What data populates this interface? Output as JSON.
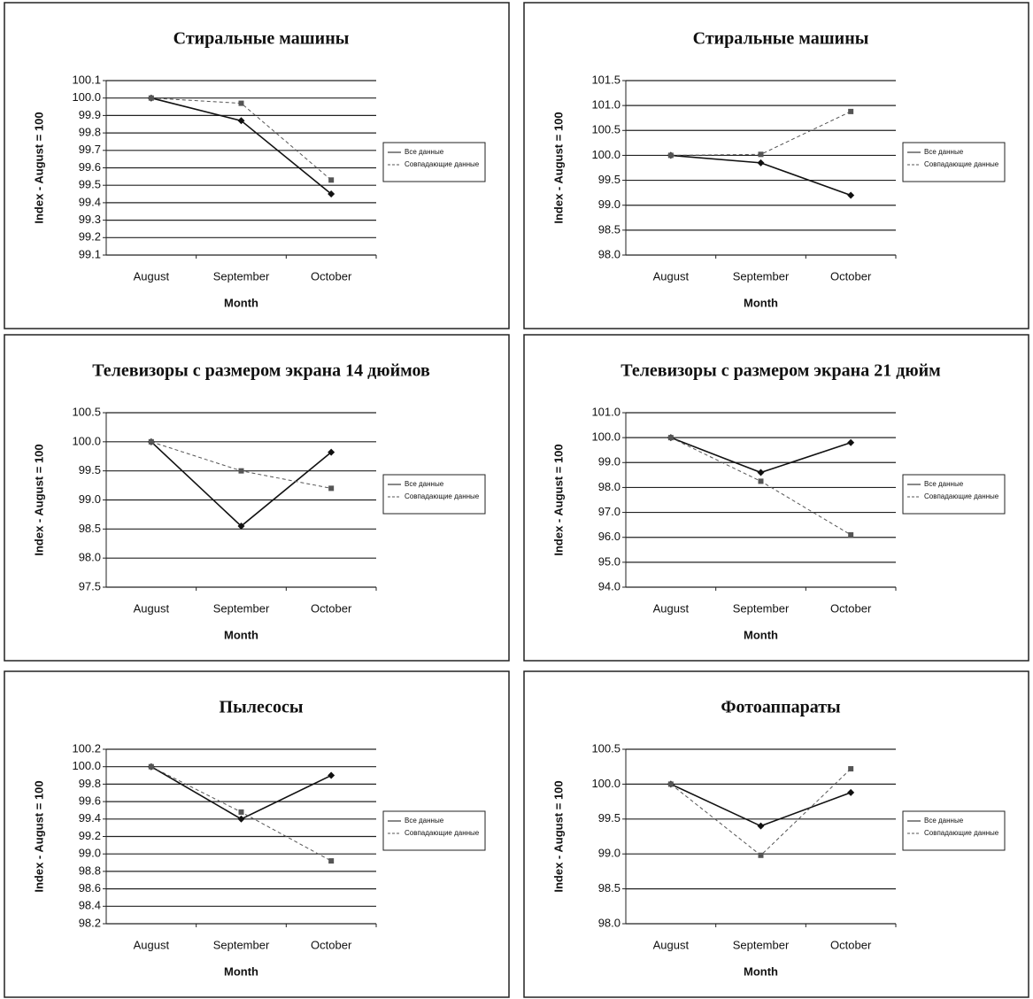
{
  "chart_data": [
    {
      "type": "line",
      "title": "Стиральные машины",
      "xlabel": "Month",
      "ylabel": "Index - August = 100",
      "categories": [
        "August",
        "September",
        "October"
      ],
      "series": [
        {
          "name": "Все данные",
          "color": "#111111",
          "style": "solid",
          "marker": "diamond",
          "values": [
            100,
            99.87,
            99.45
          ]
        },
        {
          "name": "Совпадающие данные",
          "color": "#555555",
          "style": "dashed",
          "marker": "square",
          "values": [
            100,
            99.97,
            99.53
          ]
        }
      ],
      "ylim": [
        99.1,
        100.1
      ],
      "yticks": [
        99.1,
        99.2,
        99.3,
        99.4,
        99.5,
        99.6,
        99.7,
        99.8,
        99.9,
        {
          "value": 100,
          "label": "100.0"
        },
        100.1
      ],
      "grid": true,
      "legend": "right"
    },
    {
      "type": "line",
      "title": "Стиральные машины",
      "xlabel": "Month",
      "ylabel": "Index - August = 100",
      "categories": [
        "August",
        "September",
        "October"
      ],
      "series": [
        {
          "name": "Все данные",
          "color": "#111111",
          "style": "solid",
          "marker": "diamond",
          "values": [
            100,
            99.85,
            99.2
          ]
        },
        {
          "name": "Совпадающие данные",
          "color": "#555555",
          "style": "dashed",
          "marker": "square",
          "values": [
            100,
            100.02,
            100.88
          ]
        }
      ],
      "ylim": [
        98,
        101.5
      ],
      "yticks": [
        {
          "value": 98,
          "label": "98.0"
        },
        98.5,
        {
          "value": 99,
          "label": "99.0"
        },
        99.5,
        {
          "value": 100,
          "label": "100.0"
        },
        100.5,
        {
          "value": 101,
          "label": "101.0"
        },
        101.5
      ],
      "grid": true,
      "legend": "right"
    },
    {
      "type": "line",
      "title": "Телевизоры с размером экрана 14 дюймов",
      "xlabel": "Month",
      "ylabel": "Index - August = 100",
      "categories": [
        "August",
        "September",
        "October"
      ],
      "series": [
        {
          "name": "Все данные",
          "color": "#111111",
          "style": "solid",
          "marker": "diamond",
          "values": [
            100,
            98.55,
            99.82
          ]
        },
        {
          "name": "Совпадающие данные",
          "color": "#555555",
          "style": "dashed",
          "marker": "square",
          "values": [
            100,
            99.5,
            99.2
          ]
        }
      ],
      "ylim": [
        97.5,
        100.5
      ],
      "yticks": [
        97.5,
        {
          "value": 98,
          "label": "98.0"
        },
        98.5,
        {
          "value": 99,
          "label": "99.0"
        },
        99.5,
        {
          "value": 100,
          "label": "100.0"
        },
        100.5
      ],
      "grid": true,
      "legend": "right"
    },
    {
      "type": "line",
      "title": "Телевизоры с размером экрана 21 дюйм",
      "xlabel": "Month",
      "ylabel": "Index - August = 100",
      "categories": [
        "August",
        "September",
        "October"
      ],
      "series": [
        {
          "name": "Все данные",
          "color": "#111111",
          "style": "solid",
          "marker": "diamond",
          "values": [
            100,
            98.6,
            99.8
          ]
        },
        {
          "name": "Совпадающие данные",
          "color": "#555555",
          "style": "dashed",
          "marker": "square",
          "values": [
            100,
            98.25,
            96.1
          ]
        }
      ],
      "ylim": [
        94,
        101
      ],
      "yticks": [
        {
          "value": 94,
          "label": "94.0"
        },
        {
          "value": 95,
          "label": "95.0"
        },
        {
          "value": 96,
          "label": "96.0"
        },
        {
          "value": 97,
          "label": "97.0"
        },
        {
          "value": 98,
          "label": "98.0"
        },
        {
          "value": 99,
          "label": "99.0"
        },
        {
          "value": 100,
          "label": "100.0"
        },
        {
          "value": 101,
          "label": "101.0"
        }
      ],
      "grid": true,
      "legend": "right"
    },
    {
      "type": "line",
      "title": "Пылесосы",
      "xlabel": "Month",
      "ylabel": "Index - August = 100",
      "categories": [
        "August",
        "September",
        "October"
      ],
      "series": [
        {
          "name": "Все данные",
          "color": "#111111",
          "style": "solid",
          "marker": "diamond",
          "values": [
            100,
            99.4,
            99.9
          ]
        },
        {
          "name": "Совпадающие данные",
          "color": "#555555",
          "style": "dashed",
          "marker": "square",
          "values": [
            100,
            99.48,
            98.92
          ]
        }
      ],
      "ylim": [
        98.2,
        100.2
      ],
      "yticks": [
        98.2,
        98.4,
        98.6,
        98.8,
        {
          "value": 99,
          "label": "99.0"
        },
        99.2,
        99.4,
        99.6,
        99.8,
        {
          "value": 100,
          "label": "100.0"
        },
        100.2
      ],
      "grid": true,
      "legend": "right"
    },
    {
      "type": "line",
      "title": "Фотоаппараты",
      "xlabel": "Month",
      "ylabel": "Index - August = 100",
      "categories": [
        "August",
        "September",
        "October"
      ],
      "series": [
        {
          "name": "Все данные",
          "color": "#111111",
          "style": "solid",
          "marker": "diamond",
          "values": [
            100,
            99.4,
            99.88
          ]
        },
        {
          "name": "Совпадающие данные",
          "color": "#555555",
          "style": "dashed",
          "marker": "square",
          "values": [
            100,
            98.98,
            100.22
          ]
        }
      ],
      "ylim": [
        98,
        100.5
      ],
      "yticks": [
        {
          "value": 98,
          "label": "98.0"
        },
        98.5,
        {
          "value": 99,
          "label": "99.0"
        },
        99.5,
        {
          "value": 100,
          "label": "100.0"
        },
        100.5
      ],
      "grid": true,
      "legend": "right"
    }
  ]
}
